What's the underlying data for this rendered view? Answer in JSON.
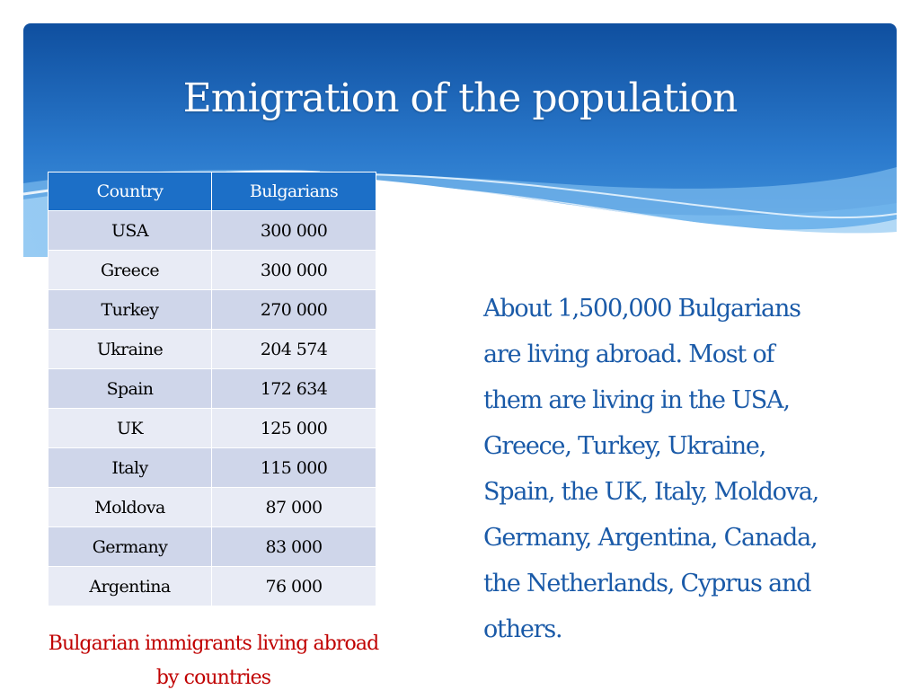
{
  "slide": {
    "title": "Emigration of the population",
    "colors": {
      "banner_dark": "#1050a0",
      "banner_light": "#4a9be0",
      "table_header": "#1c6fc7",
      "row_odd": "#cfd6ea",
      "row_even": "#e8ebf5",
      "caption": "#c00000",
      "body_text": "#1a5aa8"
    }
  },
  "table": {
    "headers": [
      "Country",
      "Bulgarians"
    ],
    "rows": [
      [
        "USA",
        "300 000"
      ],
      [
        "Greece",
        "300 000"
      ],
      [
        "Turkey",
        "270 000"
      ],
      [
        "Ukraine",
        "204 574"
      ],
      [
        "Spain",
        "172 634"
      ],
      [
        "UK",
        "125 000"
      ],
      [
        "Italy",
        "115 000"
      ],
      [
        "Moldova",
        "87 000"
      ],
      [
        "Germany",
        "83 000"
      ],
      [
        "Argentina",
        "76 000"
      ]
    ]
  },
  "caption": {
    "line1": "Bulgarian immigrants living abroad",
    "line2": "by countries"
  },
  "body": {
    "lines": [
      "About 1,500,000 Bulgarians",
      "are living abroad. Most of",
      "them are living in the USA,",
      "Greece, Turkey, Ukraine,",
      "Spain, the UK, Italy, Moldova,",
      "Germany, Argentina, Canada,",
      "the Netherlands, Cyprus and",
      "others."
    ]
  }
}
